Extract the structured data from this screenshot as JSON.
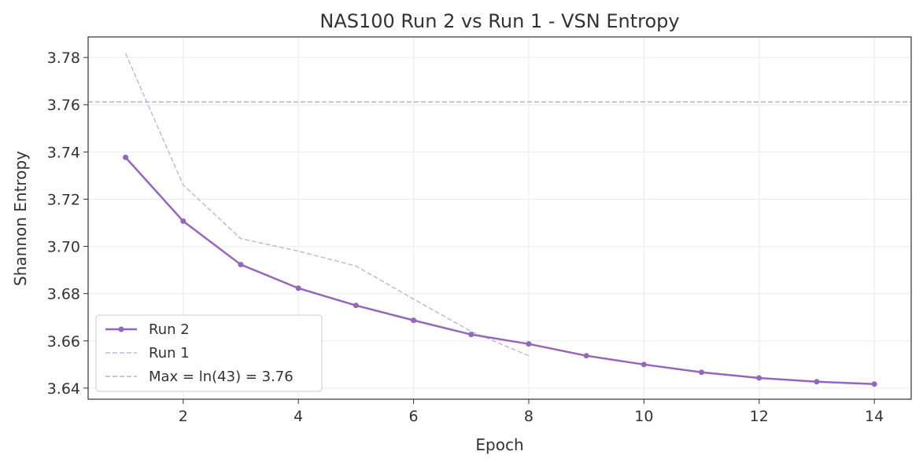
{
  "chart_data": {
    "type": "line",
    "title": "NAS100 Run 2 vs Run 1 - VSN Entropy",
    "xlabel": "Epoch",
    "ylabel": "Shannon Entropy",
    "xlim": [
      0.35,
      14.64
    ],
    "ylim": [
      3.6353,
      3.7887
    ],
    "xticks": [
      2,
      4,
      6,
      8,
      10,
      12,
      14
    ],
    "yticks": [
      3.64,
      3.66,
      3.68,
      3.7,
      3.72,
      3.74,
      3.76,
      3.78
    ],
    "ytick_labels": [
      "3.64",
      "3.66",
      "3.68",
      "3.70",
      "3.72",
      "3.74",
      "3.76",
      "3.78"
    ],
    "grid": true,
    "legend_position": "lower-left",
    "series": [
      {
        "name": "Run 2",
        "color": "#9467bd",
        "style": "solid-markers",
        "x": [
          1,
          2,
          3,
          4,
          5,
          6,
          7,
          8,
          9,
          10,
          11,
          12,
          13,
          14
        ],
        "y": [
          3.7377,
          3.7107,
          3.6923,
          3.6823,
          3.675,
          3.6687,
          3.6627,
          3.6587,
          3.6537,
          3.65,
          3.6467,
          3.6443,
          3.6427,
          3.6417
        ]
      },
      {
        "name": "Run 1",
        "color": "#c9b5e0",
        "style": "dashed",
        "x": [
          1,
          2,
          3,
          4,
          5,
          6,
          7,
          8
        ],
        "y": [
          3.7817,
          3.726,
          3.7033,
          3.698,
          3.6917,
          3.6777,
          3.664,
          3.6537
        ]
      }
    ],
    "hlines": [
      {
        "name": "Max = ln(43) = 3.76",
        "y": 3.7612,
        "color": "#b8b3bd",
        "style": "dashed"
      }
    ]
  }
}
